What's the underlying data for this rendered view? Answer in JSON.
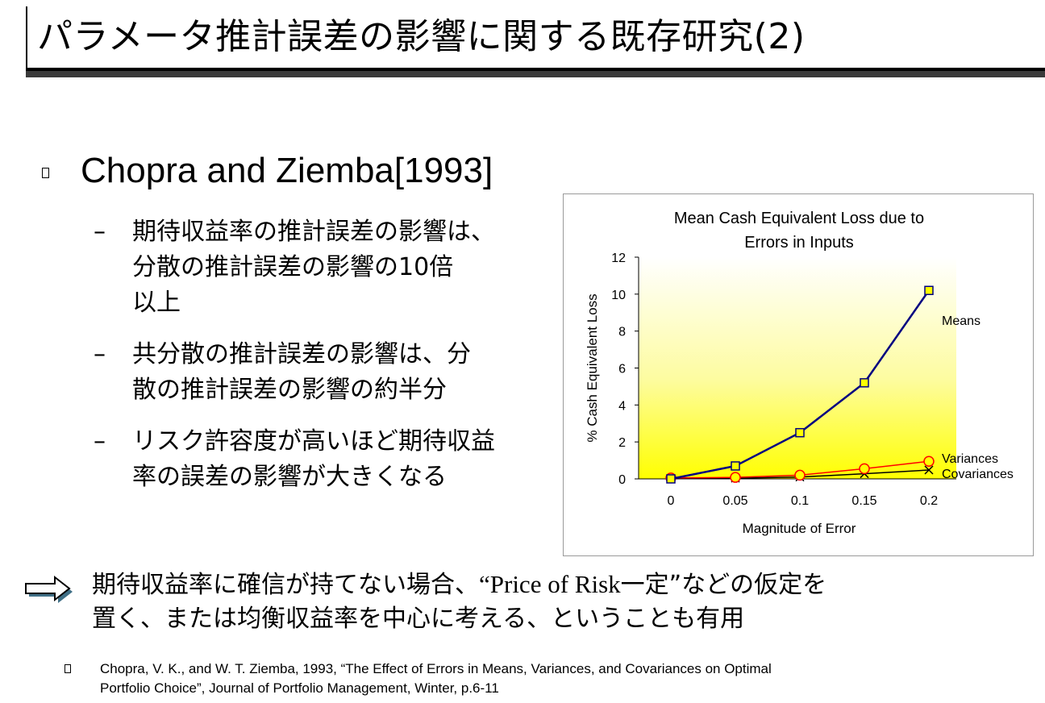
{
  "slide": {
    "title": "パラメータ推計誤差の影響に関する既存研究(2)",
    "heading": "Chopra and Ziemba[1993]",
    "bullets": [
      {
        "dash": "–",
        "lines": [
          "期待収益率の推計誤差の影響は、",
          "分散の推計誤差の影響の10倍",
          "以上"
        ]
      },
      {
        "dash": "–",
        "lines": [
          "共分散の推計誤差の影響は、分",
          "散の推計誤差の影響の約半分"
        ]
      },
      {
        "dash": "–",
        "lines": [
          "リスク許容度が高いほど期待収益",
          "率の誤差の影響が大きくなる"
        ]
      }
    ],
    "conclusion": {
      "line1_pre": "期待収益率に確信が持てない場合、",
      "line1_quote": "“Price of Risk",
      "line1_post": "一定”などの仮定を",
      "line2": "置く、または均衡収益率を中心に考える、ということも有用"
    },
    "reference": {
      "line1": "Chopra, V. K., and W. T. Ziemba, 1993, “The Effect of Errors in Means, Variances, and Covariances on Optimal",
      "line2": "Portfolio Choice”, Journal of Portfolio Management, Winter, p.6-11"
    }
  },
  "chart_data": {
    "type": "line",
    "title": [
      "Mean Cash Equivalent Loss due to",
      "Errors in Inputs"
    ],
    "xlabel": "Magnitude of Error",
    "ylabel": "% Cash Equivalent Loss",
    "x": [
      0,
      0.05,
      0.1,
      0.15,
      0.2
    ],
    "x_tick_labels": [
      "0",
      "0.05",
      "0.1",
      "0.15",
      "0.2"
    ],
    "ylim": [
      0,
      12
    ],
    "y_ticks": [
      0,
      2,
      4,
      6,
      8,
      10,
      12
    ],
    "background": "yellow-gradient",
    "grid": false,
    "series": [
      {
        "name": "Means",
        "values": [
          0,
          0.7,
          2.5,
          5.2,
          10.2
        ],
        "color": "#000080",
        "marker": "square",
        "marker_fill": "#ffff00"
      },
      {
        "name": "Variances",
        "values": [
          0.05,
          0.08,
          0.2,
          0.55,
          0.95
        ],
        "color": "#ff0000",
        "marker": "circle",
        "marker_fill": "#ffff00"
      },
      {
        "name": "Covariances",
        "values": [
          0.02,
          0.04,
          0.1,
          0.28,
          0.48
        ],
        "color": "#000000",
        "marker": "x",
        "marker_fill": "none"
      }
    ]
  }
}
